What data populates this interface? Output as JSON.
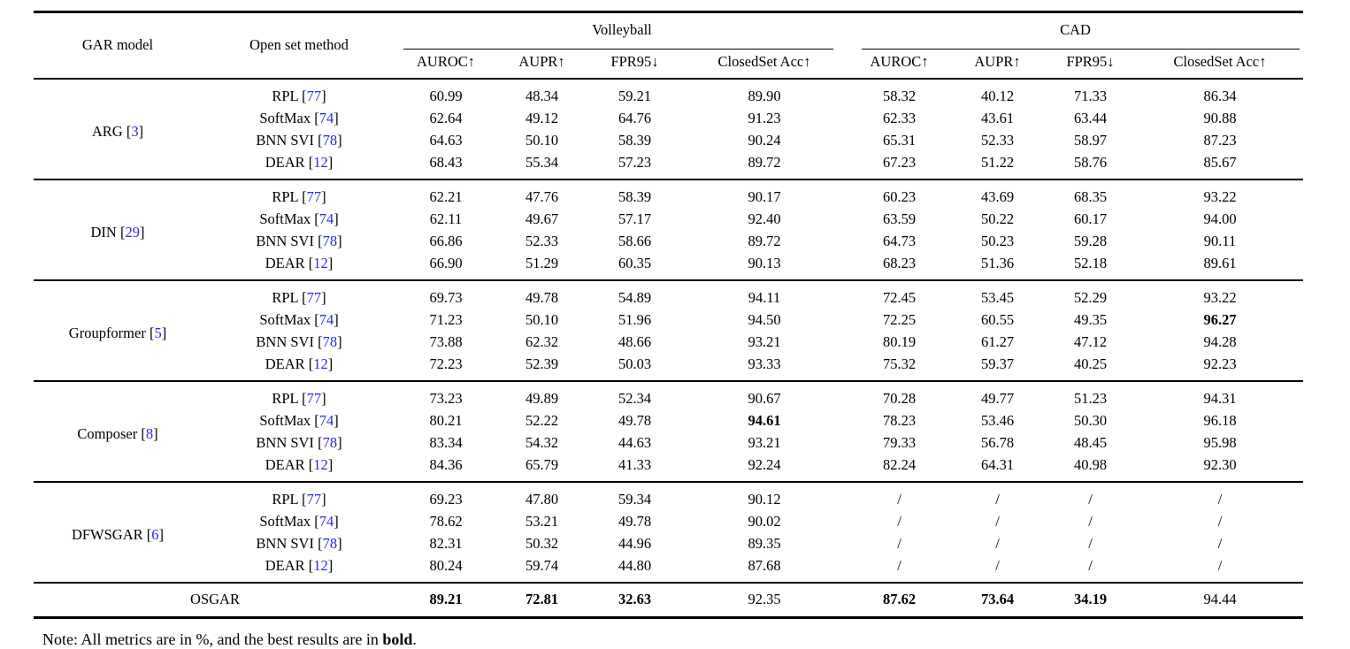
{
  "colors": {
    "citation": "#2828EB",
    "text": "#000000",
    "background": "#ffffff"
  },
  "citation": {
    "open": "[",
    "close": "]"
  },
  "table": {
    "columns": {
      "gar_model": "GAR model",
      "open_set_method": "Open set method",
      "group1": "Volleyball",
      "group2": "CAD",
      "metrics": [
        "AUROC↑",
        "AUPR↑",
        "FPR95↓",
        "ClosedSet Acc↑"
      ]
    },
    "groups": [
      {
        "model": "ARG",
        "model_ref": "3",
        "rows": [
          {
            "method": "RPL",
            "ref": "77",
            "volleyball": [
              "60.99",
              "48.34",
              "59.21",
              "89.90"
            ],
            "cad": [
              "58.32",
              "40.12",
              "71.33",
              "86.34"
            ]
          },
          {
            "method": "SoftMax",
            "ref": "74",
            "volleyball": [
              "62.64",
              "49.12",
              "64.76",
              "91.23"
            ],
            "cad": [
              "62.33",
              "43.61",
              "63.44",
              "90.88"
            ]
          },
          {
            "method": "BNN SVI",
            "ref": "78",
            "volleyball": [
              "64.63",
              "50.10",
              "58.39",
              "90.24"
            ],
            "cad": [
              "65.31",
              "52.33",
              "58.97",
              "87.23"
            ]
          },
          {
            "method": "DEAR",
            "ref": "12",
            "volleyball": [
              "68.43",
              "55.34",
              "57.23",
              "89.72"
            ],
            "cad": [
              "67.23",
              "51.22",
              "58.76",
              "85.67"
            ]
          }
        ]
      },
      {
        "model": "DIN",
        "model_ref": "29",
        "rows": [
          {
            "method": "RPL",
            "ref": "77",
            "volleyball": [
              "62.21",
              "47.76",
              "58.39",
              "90.17"
            ],
            "cad": [
              "60.23",
              "43.69",
              "68.35",
              "93.22"
            ]
          },
          {
            "method": "SoftMax",
            "ref": "74",
            "volleyball": [
              "62.11",
              "49.67",
              "57.17",
              "92.40"
            ],
            "cad": [
              "63.59",
              "50.22",
              "60.17",
              "94.00"
            ]
          },
          {
            "method": "BNN SVI",
            "ref": "78",
            "volleyball": [
              "66.86",
              "52.33",
              "58.66",
              "89.72"
            ],
            "cad": [
              "64.73",
              "50.23",
              "59.28",
              "90.11"
            ]
          },
          {
            "method": "DEAR",
            "ref": "12",
            "volleyball": [
              "66.90",
              "51.29",
              "60.35",
              "90.13"
            ],
            "cad": [
              "68.23",
              "51.36",
              "52.18",
              "89.61"
            ]
          }
        ]
      },
      {
        "model": "Groupformer",
        "model_ref": "5",
        "rows": [
          {
            "method": "RPL",
            "ref": "77",
            "volleyball": [
              "69.73",
              "49.78",
              "54.89",
              "94.11"
            ],
            "cad": [
              "72.45",
              "53.45",
              "52.29",
              "93.22"
            ]
          },
          {
            "method": "SoftMax",
            "ref": "74",
            "volleyball": [
              "71.23",
              "50.10",
              "51.96",
              "94.50"
            ],
            "cad": [
              "72.25",
              "60.55",
              "49.35",
              "96.27"
            ],
            "cad_bold": [
              false,
              false,
              false,
              true
            ]
          },
          {
            "method": "BNN SVI",
            "ref": "78",
            "volleyball": [
              "73.88",
              "62.32",
              "48.66",
              "93.21"
            ],
            "cad": [
              "80.19",
              "61.27",
              "47.12",
              "94.28"
            ]
          },
          {
            "method": "DEAR",
            "ref": "12",
            "volleyball": [
              "72.23",
              "52.39",
              "50.03",
              "93.33"
            ],
            "cad": [
              "75.32",
              "59.37",
              "40.25",
              "92.23"
            ]
          }
        ]
      },
      {
        "model": "Composer",
        "model_ref": "8",
        "rows": [
          {
            "method": "RPL",
            "ref": "77",
            "volleyball": [
              "73.23",
              "49.89",
              "52.34",
              "90.67"
            ],
            "cad": [
              "70.28",
              "49.77",
              "51.23",
              "94.31"
            ]
          },
          {
            "method": "SoftMax",
            "ref": "74",
            "volleyball": [
              "80.21",
              "52.22",
              "49.78",
              "94.61"
            ],
            "volleyball_bold": [
              false,
              false,
              false,
              true
            ],
            "cad": [
              "78.23",
              "53.46",
              "50.30",
              "96.18"
            ]
          },
          {
            "method": "BNN SVI",
            "ref": "78",
            "volleyball": [
              "83.34",
              "54.32",
              "44.63",
              "93.21"
            ],
            "cad": [
              "79.33",
              "56.78",
              "48.45",
              "95.98"
            ]
          },
          {
            "method": "DEAR",
            "ref": "12",
            "volleyball": [
              "84.36",
              "65.79",
              "41.33",
              "92.24"
            ],
            "cad": [
              "82.24",
              "64.31",
              "40.98",
              "92.30"
            ]
          }
        ]
      },
      {
        "model": "DFWSGAR",
        "model_ref": "6",
        "rows": [
          {
            "method": "RPL",
            "ref": "77",
            "volleyball": [
              "69.23",
              "47.80",
              "59.34",
              "90.12"
            ],
            "cad": [
              "/",
              "/",
              "/",
              "/"
            ]
          },
          {
            "method": "SoftMax",
            "ref": "74",
            "volleyball": [
              "78.62",
              "53.21",
              "49.78",
              "90.02"
            ],
            "cad": [
              "/",
              "/",
              "/",
              "/"
            ]
          },
          {
            "method": "BNN SVI",
            "ref": "78",
            "volleyball": [
              "82.31",
              "50.32",
              "44.96",
              "89.35"
            ],
            "cad": [
              "/",
              "/",
              "/",
              "/"
            ]
          },
          {
            "method": "DEAR",
            "ref": "12",
            "volleyball": [
              "80.24",
              "59.74",
              "44.80",
              "87.68"
            ],
            "cad": [
              "/",
              "/",
              "/",
              "/"
            ]
          }
        ]
      }
    ],
    "summary": {
      "label": "OSGAR",
      "volleyball": [
        "89.21",
        "72.81",
        "32.63",
        "92.35"
      ],
      "volleyball_bold": [
        true,
        true,
        true,
        false
      ],
      "cad": [
        "87.62",
        "73.64",
        "34.19",
        "94.44"
      ],
      "cad_bold": [
        true,
        true,
        true,
        false
      ]
    }
  },
  "note": {
    "prefix": "Note: All metrics are in %, and the best results are in ",
    "bold_word": "bold",
    "suffix": "."
  }
}
